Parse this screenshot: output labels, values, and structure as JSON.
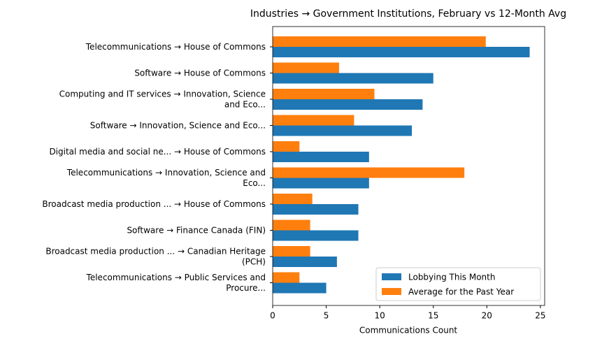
{
  "chart_data": {
    "type": "barh",
    "title": "Industries → Government Institutions, February vs 12-Month Avg",
    "x_label": "Communications Count",
    "categories": [
      [
        "Telecommunications → House of Commons"
      ],
      [
        "Software → House of Commons"
      ],
      [
        "Computing and IT services → Innovation, Science",
        "and Eco..."
      ],
      [
        "Software → Innovation, Science and Eco..."
      ],
      [
        "Digital media and social ne... → House of Commons"
      ],
      [
        "Telecommunications → Innovation, Science and",
        "Eco..."
      ],
      [
        "Broadcast media production ... → House of Commons"
      ],
      [
        "Software → Finance Canada (FIN)"
      ],
      [
        "Broadcast media production ... → Canadian Heritage",
        "(PCH)"
      ],
      [
        "Telecommunications → Public Services and",
        "Procure..."
      ]
    ],
    "series": [
      {
        "name": "Lobbying This Month",
        "color": "#1f77b4",
        "values": [
          24,
          15,
          14,
          13,
          9,
          9,
          8,
          8,
          6,
          5
        ]
      },
      {
        "name": "Average for the Past Year",
        "color": "#ff7f0e",
        "values": [
          19.9,
          6.2,
          9.5,
          7.6,
          2.5,
          17.9,
          3.7,
          3.5,
          3.5,
          2.5
        ]
      }
    ],
    "xlim": [
      0,
      25.4
    ],
    "xticks": [
      0,
      5,
      10,
      15,
      20,
      25
    ],
    "legend": "lower right"
  }
}
